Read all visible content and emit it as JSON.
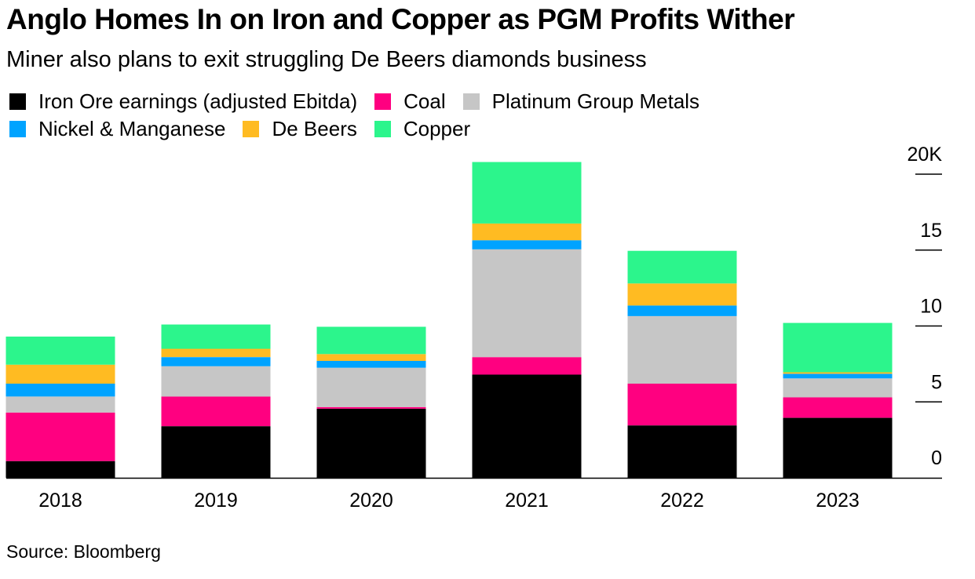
{
  "header": {
    "title": "Anglo Homes In on Iron and Copper as PGM Profits Wither",
    "subtitle": "Miner also plans to exit struggling De Beers diamonds business"
  },
  "footer": {
    "source": "Source: Bloomberg"
  },
  "chart_data": {
    "type": "bar",
    "stacked": true,
    "categories": [
      "2018",
      "2019",
      "2020",
      "2021",
      "2022",
      "2023"
    ],
    "series": [
      {
        "name": "Iron Ore earnings (adjusted Ebitda)",
        "color": "#000000",
        "values": [
          1.1,
          3.4,
          4.55,
          6.8,
          3.45,
          3.95
        ]
      },
      {
        "name": "Coal",
        "color": "#ff0080",
        "values": [
          3.2,
          1.95,
          0.1,
          1.15,
          2.75,
          1.35
        ]
      },
      {
        "name": "Platinum Group Metals",
        "color": "#c6c6c6",
        "values": [
          1.05,
          2.0,
          2.6,
          7.1,
          4.45,
          1.25
        ]
      },
      {
        "name": "Nickel & Manganese",
        "color": "#00a3ff",
        "values": [
          0.85,
          0.6,
          0.45,
          0.6,
          0.7,
          0.3
        ]
      },
      {
        "name": "De Beers",
        "color": "#ffbb22",
        "values": [
          1.25,
          0.55,
          0.45,
          1.1,
          1.45,
          0.1
        ]
      },
      {
        "name": "Copper",
        "color": "#2cf58c",
        "values": [
          1.85,
          1.6,
          1.8,
          4.05,
          2.15,
          3.25
        ]
      }
    ],
    "legend_order": [
      0,
      1,
      2,
      3,
      4,
      5
    ],
    "legend_placement": "top-left",
    "yticks": [
      "0",
      "5",
      "10",
      "15",
      "20K"
    ],
    "ylim": [
      0,
      20
    ],
    "ylabel": "",
    "xlabel": "",
    "grid": false,
    "y_axis_side": "right"
  }
}
